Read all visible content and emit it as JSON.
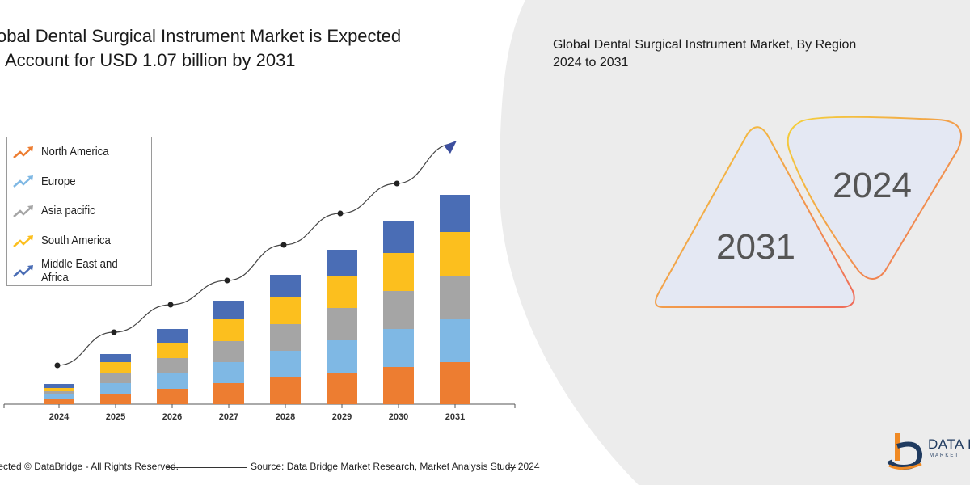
{
  "left_title": {
    "line1": "obal Dental Surgical Instrument Market is Expected",
    "line2": "Account for USD 1.07 billion by 2031"
  },
  "right_title": {
    "line1": "Global Dental Surgical Instrument Market, By Region",
    "line2": "2024 to 2031"
  },
  "triangles": {
    "front_label": "2031",
    "back_label": "2024"
  },
  "footer": {
    "copyright": "tected © DataBridge - All Rights Reserved.",
    "source": "Source: Data Bridge Market Research, Market Analysis Study 2024"
  },
  "logo": {
    "text": "DATA B",
    "sub": "MARKET"
  },
  "colors": {
    "North America": "#ed7d31",
    "Europe": "#7fb8e4",
    "Asia pacific": "#a5a5a5",
    "South America": "#fcbf1e",
    "Middle East and Africa": "#4a6db5",
    "background_shape": "#ececec",
    "trend_arrow": "#3d4f9e"
  },
  "chart_data": {
    "type": "bar",
    "stacked": true,
    "categories": [
      "2024",
      "2025",
      "2026",
      "2027",
      "2028",
      "2029",
      "2030",
      "2031"
    ],
    "series": [
      {
        "name": "North America",
        "values": [
          6,
          13,
          19,
          26,
          33,
          39,
          46,
          52
        ]
      },
      {
        "name": "Europe",
        "values": [
          6,
          13,
          19,
          26,
          33,
          40,
          47,
          53
        ]
      },
      {
        "name": "Asia pacific",
        "values": [
          4,
          13,
          19,
          26,
          33,
          40,
          47,
          54
        ]
      },
      {
        "name": "South America",
        "values": [
          4,
          13,
          19,
          27,
          33,
          40,
          47,
          54
        ]
      },
      {
        "name": "Middle East and Africa",
        "values": [
          5,
          10,
          17,
          23,
          28,
          32,
          39,
          46
        ]
      }
    ],
    "trend_points": [
      48,
      89,
      123,
      153,
      197,
      236,
      273,
      322
    ],
    "title": "",
    "xlabel": "",
    "ylabel": "",
    "legend": "left",
    "grid": false
  }
}
